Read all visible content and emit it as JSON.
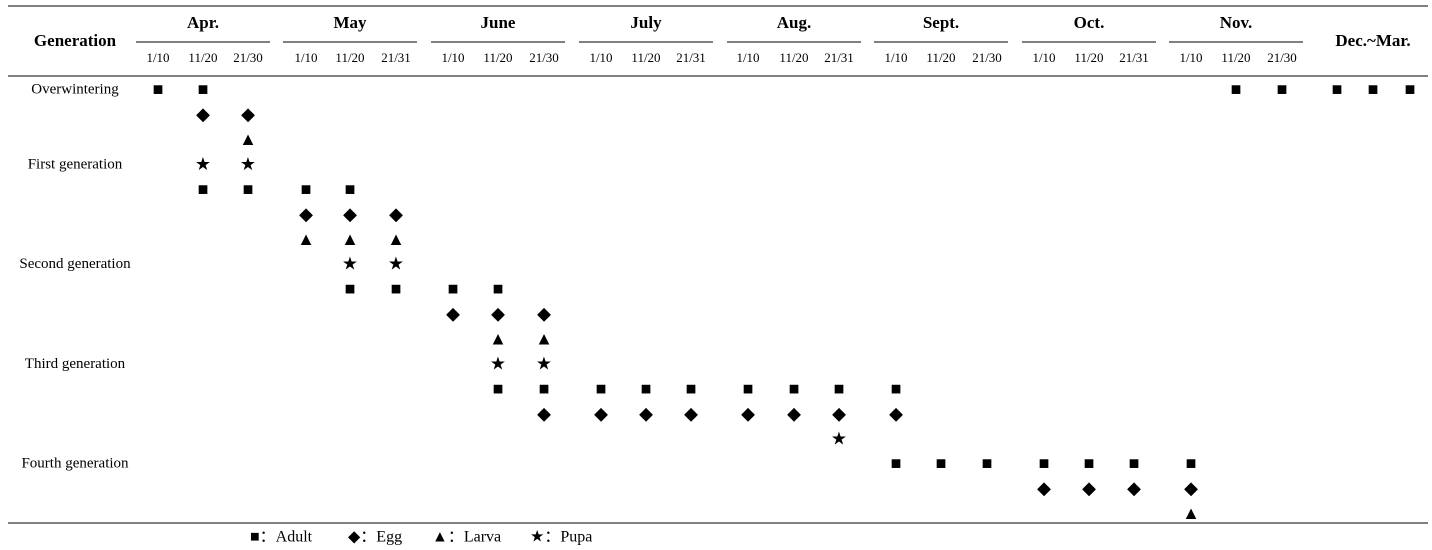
{
  "header": {
    "title": "Generation",
    "months": [
      {
        "name": "Apr.",
        "periods": [
          "1/10",
          "11/20",
          "21/30"
        ]
      },
      {
        "name": "May",
        "periods": [
          "1/10",
          "11/20",
          "21/31"
        ]
      },
      {
        "name": "June",
        "periods": [
          "1/10",
          "11/20",
          "21/30"
        ]
      },
      {
        "name": "July",
        "periods": [
          "1/10",
          "11/20",
          "21/31"
        ]
      },
      {
        "name": "Aug.",
        "periods": [
          "1/10",
          "11/20",
          "21/31"
        ]
      },
      {
        "name": "Sept.",
        "periods": [
          "1/10",
          "11/20",
          "21/30"
        ]
      },
      {
        "name": "Oct.",
        "periods": [
          "1/10",
          "11/20",
          "21/31"
        ]
      },
      {
        "name": "Nov.",
        "periods": [
          "1/10",
          "11/20",
          "21/30"
        ]
      },
      {
        "name": "Dec.~Mar."
      }
    ]
  },
  "rows": [
    {
      "label": "Overwintering",
      "cells": [
        "■",
        "■",
        null,
        null,
        null,
        null,
        null,
        null,
        null,
        null,
        null,
        null,
        null,
        null,
        null,
        null,
        null,
        null,
        null,
        null,
        null,
        null,
        "■",
        "■",
        "■",
        "■",
        "■"
      ]
    },
    {
      "cells": [
        null,
        "◆",
        "◆",
        null,
        null,
        null,
        null,
        null,
        null,
        null,
        null,
        null,
        null,
        null,
        null,
        null,
        null,
        null,
        null,
        null,
        null,
        null,
        null,
        null,
        null,
        null,
        null
      ]
    },
    {
      "cells": [
        null,
        null,
        "▲",
        null,
        null,
        null,
        null,
        null,
        null,
        null,
        null,
        null,
        null,
        null,
        null,
        null,
        null,
        null,
        null,
        null,
        null,
        null,
        null,
        null,
        null,
        null,
        null
      ]
    },
    {
      "label": "First generation",
      "cells": [
        null,
        "★",
        "★",
        null,
        null,
        null,
        null,
        null,
        null,
        null,
        null,
        null,
        null,
        null,
        null,
        null,
        null,
        null,
        null,
        null,
        null,
        null,
        null,
        null,
        null,
        null,
        null
      ]
    },
    {
      "cells": [
        null,
        "■",
        "■",
        "■",
        "■",
        null,
        null,
        null,
        null,
        null,
        null,
        null,
        null,
        null,
        null,
        null,
        null,
        null,
        null,
        null,
        null,
        null,
        null,
        null,
        null,
        null,
        null
      ]
    },
    {
      "cells": [
        null,
        null,
        null,
        "◆",
        "◆",
        "◆",
        null,
        null,
        null,
        null,
        null,
        null,
        null,
        null,
        null,
        null,
        null,
        null,
        null,
        null,
        null,
        null,
        null,
        null,
        null,
        null,
        null
      ]
    },
    {
      "cells": [
        null,
        null,
        null,
        "▲",
        "▲",
        "▲",
        null,
        null,
        null,
        null,
        null,
        null,
        null,
        null,
        null,
        null,
        null,
        null,
        null,
        null,
        null,
        null,
        null,
        null,
        null,
        null,
        null
      ]
    },
    {
      "label": "Second generation",
      "cells": [
        null,
        null,
        null,
        null,
        "★",
        "★",
        null,
        null,
        null,
        null,
        null,
        null,
        null,
        null,
        null,
        null,
        null,
        null,
        null,
        null,
        null,
        null,
        null,
        null,
        null,
        null,
        null
      ]
    },
    {
      "cells": [
        null,
        null,
        null,
        null,
        "■",
        "■",
        "■",
        "■",
        null,
        null,
        null,
        null,
        null,
        null,
        null,
        null,
        null,
        null,
        null,
        null,
        null,
        null,
        null,
        null,
        null,
        null,
        null
      ]
    },
    {
      "cells": [
        null,
        null,
        null,
        null,
        null,
        null,
        "◆",
        "◆",
        "◆",
        null,
        null,
        null,
        null,
        null,
        null,
        null,
        null,
        null,
        null,
        null,
        null,
        null,
        null,
        null,
        null,
        null,
        null
      ]
    },
    {
      "cells": [
        null,
        null,
        null,
        null,
        null,
        null,
        null,
        "▲",
        "▲",
        null,
        null,
        null,
        null,
        null,
        null,
        null,
        null,
        null,
        null,
        null,
        null,
        null,
        null,
        null,
        null,
        null,
        null
      ]
    },
    {
      "label": "Third generation",
      "cells": [
        null,
        null,
        null,
        null,
        null,
        null,
        null,
        "★",
        "★",
        null,
        null,
        null,
        null,
        null,
        null,
        null,
        null,
        null,
        null,
        null,
        null,
        null,
        null,
        null,
        null,
        null,
        null
      ]
    },
    {
      "cells": [
        null,
        null,
        null,
        null,
        null,
        null,
        null,
        "■",
        "■",
        "■",
        "■",
        "■",
        "■",
        "■",
        "■",
        "■",
        null,
        null,
        null,
        null,
        null,
        null,
        null,
        null,
        null,
        null,
        null
      ]
    },
    {
      "cells": [
        null,
        null,
        null,
        null,
        null,
        null,
        null,
        null,
        "◆",
        "◆",
        "◆",
        "◆",
        "◆",
        "◆",
        "◆",
        "◆",
        null,
        null,
        null,
        null,
        null,
        null,
        null,
        null,
        null,
        null,
        null
      ]
    },
    {
      "cells": [
        null,
        null,
        null,
        null,
        null,
        null,
        null,
        null,
        null,
        null,
        null,
        null,
        null,
        null,
        "★",
        null,
        null,
        null,
        null,
        null,
        null,
        null,
        null,
        null,
        null,
        null,
        null
      ]
    },
    {
      "label": "Fourth generation",
      "cells": [
        null,
        null,
        null,
        null,
        null,
        null,
        null,
        null,
        null,
        null,
        null,
        null,
        null,
        null,
        null,
        "■",
        "■",
        "■",
        "■",
        "■",
        "■",
        "■",
        null,
        null,
        null,
        null,
        null
      ]
    },
    {
      "cells": [
        null,
        null,
        null,
        null,
        null,
        null,
        null,
        null,
        null,
        null,
        null,
        null,
        null,
        null,
        null,
        null,
        null,
        null,
        "◆",
        "◆",
        "◆",
        "◆",
        null,
        null,
        null,
        null,
        null
      ]
    },
    {
      "cells": [
        null,
        null,
        null,
        null,
        null,
        null,
        null,
        null,
        null,
        null,
        null,
        null,
        null,
        null,
        null,
        null,
        null,
        null,
        null,
        null,
        null,
        "▲",
        null,
        null,
        null,
        null,
        null
      ]
    }
  ],
  "legend": [
    "■：Adult",
    "◆：Egg",
    "▲：Larva",
    "★：Pupa"
  ]
}
